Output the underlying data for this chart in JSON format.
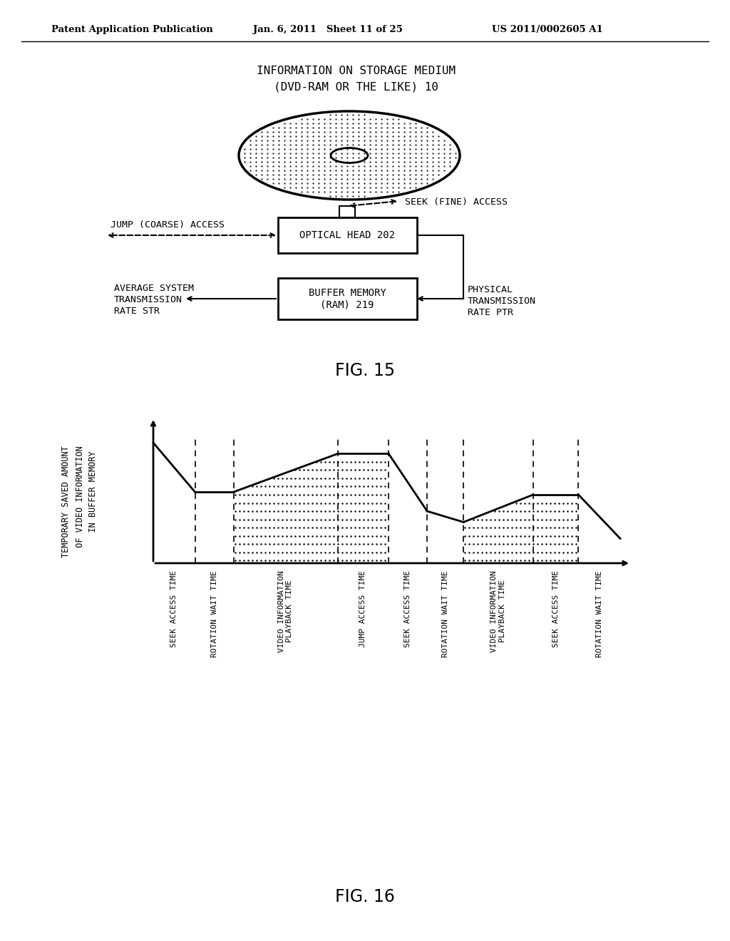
{
  "header_left": "Patent Application Publication",
  "header_mid": "Jan. 6, 2011   Sheet 11 of 25",
  "header_right": "US 2011/0002605 A1",
  "fig15_title_line1": "INFORMATION ON STORAGE MEDIUM",
  "fig15_title_line2": "(DVD-RAM OR THE LIKE) 10",
  "fig15_label": "FIG. 15",
  "fig16_label": "FIG. 16",
  "optical_head_label": "OPTICAL HEAD 202",
  "buffer_memory_label": "BUFFER MEMORY\n(RAM) 219",
  "seek_access_label": "SEEK (FINE) ACCESS",
  "jump_access_label": "JUMP (COARSE) ACCESS",
  "avg_sys_label_line1": "AVERAGE SYSTEM",
  "avg_sys_label_line2": "TRANSMISSION",
  "avg_sys_label_line3": "RATE STR",
  "phys_trans_label_line1": "PHYSICAL",
  "phys_trans_label_line2": "TRANSMISSION",
  "phys_trans_label_line3": "RATE PTR",
  "fig16_ylabel_line1": "TEMPORARY SAVED AMOUNT",
  "fig16_ylabel_line2": "OF VIDEO INFORMATION",
  "fig16_ylabel_line3": "IN BUFFER MEMORY",
  "fig16_xtick_labels": [
    "SEEK ACCESS TIME",
    "ROTATION WAIT TIME",
    "VIDEO INFORMATION\nPLAYBACK TIME",
    "JUMP ACCESS TIME",
    "SEEK ACCESS TIME",
    "ROTATION WAIT TIME",
    "VIDEO INFORMATION\nPLAYBACK TIME",
    "SEEK ACCESS TIME",
    "ROTATION WAIT TIME"
  ],
  "bg_color": "#ffffff",
  "line_color": "#000000"
}
